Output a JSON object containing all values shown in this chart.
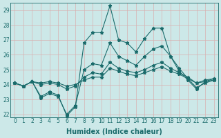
{
  "xlabel": "Humidex (Indice chaleur)",
  "background_color": "#cce8e8",
  "line_color": "#1a6b6b",
  "grid_color": "#b0d4d4",
  "xlim": [
    -0.5,
    23.5
  ],
  "ylim": [
    21.8,
    29.5
  ],
  "yticks": [
    22,
    23,
    24,
    25,
    26,
    27,
    28,
    29
  ],
  "xticks": [
    0,
    1,
    2,
    3,
    4,
    5,
    6,
    7,
    8,
    9,
    10,
    11,
    12,
    13,
    14,
    15,
    16,
    17,
    18,
    19,
    20,
    21,
    22,
    23
  ],
  "series": [
    [
      24.1,
      23.9,
      24.2,
      23.2,
      23.5,
      23.3,
      21.9,
      22.5,
      26.8,
      27.5,
      27.5,
      29.3,
      27.0,
      26.8,
      26.2,
      27.1,
      27.8,
      27.8,
      25.9,
      24.9,
      24.3,
      23.7,
      24.2,
      24.3
    ],
    [
      24.1,
      23.9,
      24.2,
      23.1,
      23.4,
      23.2,
      22.0,
      22.6,
      25.0,
      25.4,
      25.3,
      26.8,
      25.9,
      25.6,
      25.3,
      25.9,
      26.4,
      26.6,
      25.9,
      25.1,
      24.4,
      23.8,
      24.1,
      24.3
    ],
    [
      24.1,
      23.9,
      24.2,
      24.0,
      24.1,
      24.0,
      23.7,
      23.9,
      24.5,
      24.8,
      24.7,
      25.5,
      25.1,
      24.9,
      24.8,
      25.0,
      25.3,
      25.5,
      25.1,
      24.8,
      24.5,
      24.1,
      24.3,
      24.4
    ],
    [
      24.1,
      23.9,
      24.2,
      24.1,
      24.2,
      24.1,
      23.9,
      24.0,
      24.3,
      24.5,
      24.5,
      25.1,
      24.9,
      24.7,
      24.6,
      24.8,
      25.0,
      25.2,
      24.9,
      24.7,
      24.4,
      24.1,
      24.2,
      24.4
    ]
  ],
  "marker": "*",
  "markersize": 3.5,
  "linewidth": 0.8,
  "xlabel_fontsize": 7,
  "tick_fontsize": 5.5
}
